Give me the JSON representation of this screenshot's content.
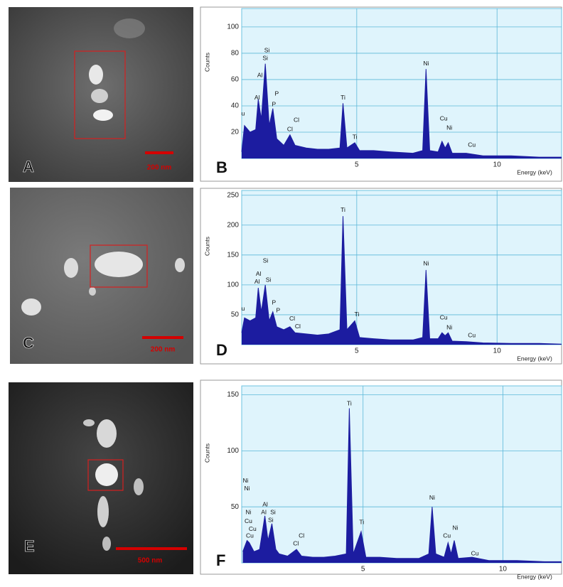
{
  "panels": [
    {
      "letter": "A",
      "scale": "200 nm"
    },
    {
      "letter": "C",
      "scale": "200 nm"
    },
    {
      "letter": "E",
      "scale": "500 nm"
    }
  ],
  "chart_data": [
    {
      "type": "area",
      "panel_label": "B",
      "y_label": "Counts",
      "x_label": "Energy (keV)",
      "color": "#1c1ca0",
      "grid": true,
      "xlim": [
        0.9,
        12.3
      ],
      "xticks": [
        5,
        10
      ],
      "ylim": [
        0,
        114
      ],
      "yticks": [
        20,
        40,
        60,
        80,
        100
      ],
      "x": [
        0.9,
        1.0,
        1.2,
        1.4,
        1.49,
        1.6,
        1.74,
        1.88,
        2.01,
        2.15,
        2.4,
        2.62,
        2.8,
        3.2,
        3.6,
        4.0,
        4.4,
        4.51,
        4.65,
        4.93,
        5.1,
        5.6,
        6.2,
        7.0,
        7.35,
        7.47,
        7.6,
        7.9,
        8.04,
        8.15,
        8.26,
        8.4,
        8.9,
        9.5,
        10.5,
        11.5,
        12.3
      ],
      "values": [
        5,
        25,
        20,
        22,
        45,
        30,
        72,
        25,
        38,
        15,
        10,
        18,
        10,
        8,
        7,
        7,
        8,
        42,
        8,
        12,
        6,
        6,
        5,
        4,
        6,
        68,
        6,
        5,
        13,
        8,
        12,
        4,
        4,
        2,
        2,
        1,
        1
      ],
      "annotations": [
        {
          "text": "u",
          "x": 0.95,
          "y": 34
        },
        {
          "text": "Al",
          "x": 1.45,
          "y": 46
        },
        {
          "text": "Al",
          "x": 1.55,
          "y": 63
        },
        {
          "text": "Si",
          "x": 1.74,
          "y": 76
        },
        {
          "text": "Si",
          "x": 1.8,
          "y": 82
        },
        {
          "text": "P",
          "x": 2.05,
          "y": 41
        },
        {
          "text": "P",
          "x": 2.15,
          "y": 49
        },
        {
          "text": "Cl",
          "x": 2.62,
          "y": 22
        },
        {
          "text": "Cl",
          "x": 2.85,
          "y": 29
        },
        {
          "text": "Ti",
          "x": 4.51,
          "y": 46
        },
        {
          "text": "Ti",
          "x": 4.93,
          "y": 16
        },
        {
          "text": "Ni",
          "x": 7.47,
          "y": 72
        },
        {
          "text": "Cu",
          "x": 8.1,
          "y": 30
        },
        {
          "text": "Ni",
          "x": 8.3,
          "y": 23
        },
        {
          "text": "Cu",
          "x": 9.1,
          "y": 10
        }
      ]
    },
    {
      "type": "area",
      "panel_label": "D",
      "y_label": "Counts",
      "x_label": "Energy (keV)",
      "color": "#1c1ca0",
      "grid": true,
      "xlim": [
        0.9,
        12.3
      ],
      "xticks": [
        5,
        10
      ],
      "ylim": [
        0,
        258
      ],
      "yticks": [
        50,
        100,
        150,
        200,
        250
      ],
      "x": [
        0.9,
        1.0,
        1.2,
        1.4,
        1.49,
        1.6,
        1.74,
        1.88,
        2.01,
        2.15,
        2.4,
        2.62,
        2.8,
        3.2,
        3.6,
        4.0,
        4.4,
        4.51,
        4.65,
        4.93,
        5.1,
        5.6,
        6.2,
        7.0,
        7.35,
        7.47,
        7.6,
        7.9,
        8.04,
        8.15,
        8.26,
        8.4,
        8.9,
        9.5,
        10.5,
        11.5,
        12.3
      ],
      "values": [
        20,
        45,
        40,
        45,
        95,
        55,
        100,
        40,
        55,
        30,
        25,
        30,
        20,
        18,
        16,
        18,
        25,
        215,
        25,
        40,
        12,
        10,
        8,
        8,
        12,
        125,
        10,
        10,
        20,
        15,
        20,
        6,
        5,
        3,
        2,
        2,
        1
      ],
      "annotations": [
        {
          "text": "u",
          "x": 0.95,
          "y": 60
        },
        {
          "text": "Al",
          "x": 1.45,
          "y": 105
        },
        {
          "text": "Al",
          "x": 1.5,
          "y": 118
        },
        {
          "text": "Si",
          "x": 1.75,
          "y": 140
        },
        {
          "text": "Si",
          "x": 1.85,
          "y": 108
        },
        {
          "text": "P",
          "x": 2.05,
          "y": 70
        },
        {
          "text": "P",
          "x": 2.2,
          "y": 57
        },
        {
          "text": "Cl",
          "x": 2.7,
          "y": 43
        },
        {
          "text": "Cl",
          "x": 2.9,
          "y": 30
        },
        {
          "text": "Ti",
          "x": 4.51,
          "y": 225
        },
        {
          "text": "Ti",
          "x": 5.0,
          "y": 50
        },
        {
          "text": "Ni",
          "x": 7.47,
          "y": 135
        },
        {
          "text": "Cu",
          "x": 8.1,
          "y": 45
        },
        {
          "text": "Ni",
          "x": 8.3,
          "y": 28
        },
        {
          "text": "Cu",
          "x": 9.1,
          "y": 15
        }
      ]
    },
    {
      "type": "area",
      "panel_label": "F",
      "y_label": "Counts",
      "x_label": "Energy (keV)",
      "color": "#1c1ca0",
      "grid": true,
      "xlim": [
        0.66,
        12.1
      ],
      "xticks": [
        5,
        10
      ],
      "ylim": [
        0,
        158
      ],
      "yticks": [
        50,
        100,
        150
      ],
      "x": [
        0.7,
        0.85,
        0.93,
        1.1,
        1.3,
        1.49,
        1.6,
        1.74,
        1.88,
        2.0,
        2.3,
        2.62,
        2.8,
        3.2,
        3.6,
        4.0,
        4.4,
        4.51,
        4.65,
        4.93,
        5.1,
        5.6,
        6.2,
        7.0,
        7.35,
        7.47,
        7.6,
        7.9,
        8.04,
        8.15,
        8.26,
        8.4,
        8.9,
        9.5,
        10.5,
        11.5,
        12.1
      ],
      "values": [
        10,
        20,
        18,
        10,
        12,
        42,
        20,
        35,
        12,
        8,
        6,
        12,
        6,
        5,
        5,
        6,
        8,
        138,
        8,
        28,
        5,
        5,
        4,
        4,
        8,
        50,
        8,
        5,
        18,
        8,
        20,
        4,
        5,
        2,
        2,
        1,
        1
      ],
      "annotations": [
        {
          "text": "Ni",
          "x": 0.8,
          "y": 73
        },
        {
          "text": "Ni",
          "x": 0.85,
          "y": 66
        },
        {
          "text": "Ni",
          "x": 0.9,
          "y": 45
        },
        {
          "text": "Cu",
          "x": 0.9,
          "y": 37
        },
        {
          "text": "Cu",
          "x": 1.05,
          "y": 30
        },
        {
          "text": "Cu",
          "x": 0.95,
          "y": 24
        },
        {
          "text": "Al",
          "x": 1.5,
          "y": 52
        },
        {
          "text": "Al",
          "x": 1.45,
          "y": 45
        },
        {
          "text": "Si",
          "x": 1.78,
          "y": 45
        },
        {
          "text": "Si",
          "x": 1.7,
          "y": 38
        },
        {
          "text": "Cl",
          "x": 2.8,
          "y": 24
        },
        {
          "text": "Cl",
          "x": 2.6,
          "y": 17
        },
        {
          "text": "Ti",
          "x": 4.51,
          "y": 142
        },
        {
          "text": "Ti",
          "x": 4.95,
          "y": 36
        },
        {
          "text": "Ni",
          "x": 7.47,
          "y": 58
        },
        {
          "text": "Ni",
          "x": 8.3,
          "y": 31
        },
        {
          "text": "Cu",
          "x": 8.0,
          "y": 24
        },
        {
          "text": "Cu",
          "x": 9.0,
          "y": 8
        }
      ]
    }
  ]
}
